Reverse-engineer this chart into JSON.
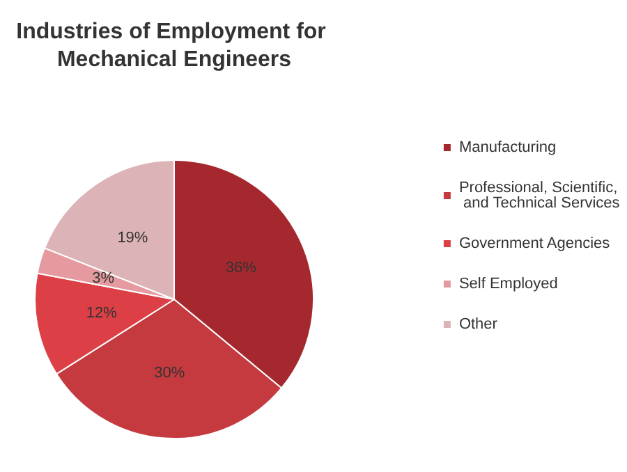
{
  "chart_data": {
    "type": "pie",
    "title": "Industries of Employment for Mechanical Engineers",
    "categories": [
      "Manufacturing",
      "Professional, Scientific, and Technical Services",
      "Government Agencies",
      "Self Employed",
      "Other"
    ],
    "values": [
      36,
      30,
      12,
      3,
      19
    ],
    "colors": [
      "#a5282e",
      "#c43a3f",
      "#dc4046",
      "#e49a9e",
      "#dcb4b7"
    ],
    "value_labels": [
      "36%",
      "30%",
      "12%",
      "3%",
      "19%"
    ],
    "legend": "right"
  }
}
